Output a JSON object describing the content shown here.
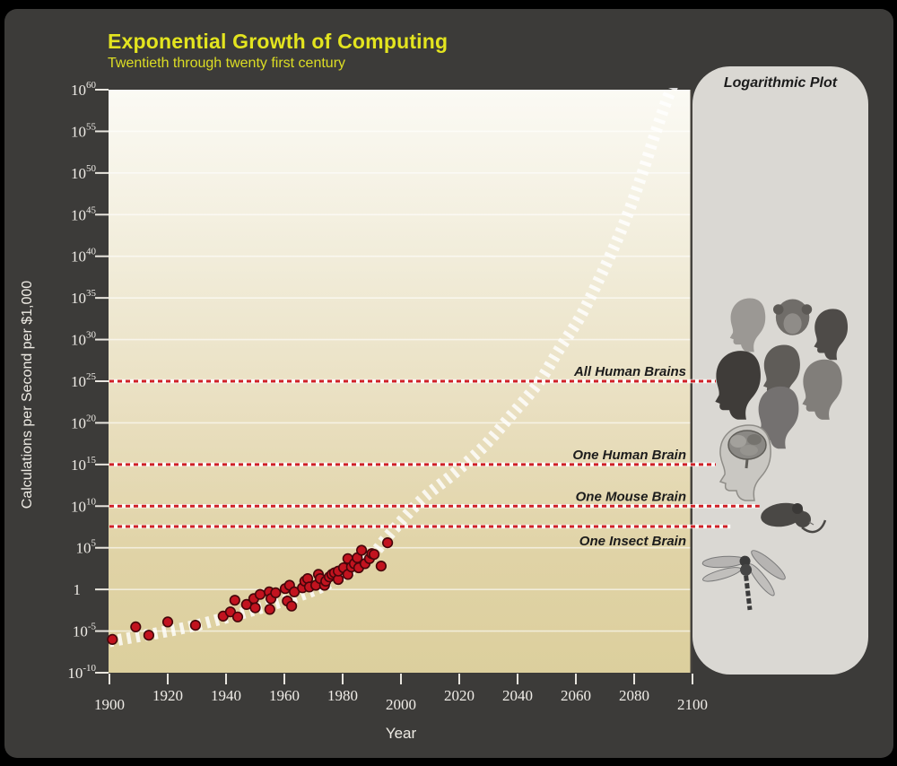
{
  "header": {
    "title": "Exponential Growth of Computing",
    "subtitle": "Twentieth through twenty first century",
    "accent_color": "#e3e41f"
  },
  "panel": {
    "label": "Logarithmic Plot",
    "images": [
      "human-heads-collage",
      "human-brain-cutaway-head",
      "mouse",
      "dragonfly"
    ]
  },
  "chart_data": {
    "type": "scatter",
    "title": "Exponential Growth of Computing",
    "subtitle": "Twentieth through twenty first century",
    "xlabel": "Year",
    "ylabel": "Calculations per Second per $1,000",
    "xlim": [
      1900,
      2100
    ],
    "ylim_log10": [
      -10,
      60
    ],
    "x_ticks": [
      1900,
      1920,
      1940,
      1960,
      1980,
      2000,
      2020,
      2040,
      2060,
      2080,
      2100
    ],
    "y_tick_exponents": [
      60,
      55,
      50,
      45,
      40,
      35,
      30,
      25,
      20,
      15,
      10,
      5,
      0,
      -5,
      -10
    ],
    "grid": true,
    "legend_position": "none",
    "point_color": "#c2131f",
    "point_edge_color": "#45060a",
    "trend_color": "#ffffff",
    "reference_line_color": "#cf2026",
    "points_year_log10": [
      [
        1901,
        -6.0
      ],
      [
        1909,
        -4.5
      ],
      [
        1913.5,
        -5.5
      ],
      [
        1920,
        -3.9
      ],
      [
        1929.5,
        -4.3
      ],
      [
        1939,
        -3.2
      ],
      [
        1941.5,
        -2.7
      ],
      [
        1943,
        -1.3
      ],
      [
        1944,
        -3.3
      ],
      [
        1947,
        -1.8
      ],
      [
        1949.5,
        -1.1
      ],
      [
        1950,
        -2.2
      ],
      [
        1951.7,
        -0.6
      ],
      [
        1954.8,
        -0.3
      ],
      [
        1955,
        -2.4
      ],
      [
        1955.4,
        -1.1
      ],
      [
        1957,
        -0.4
      ],
      [
        1960.3,
        0.1
      ],
      [
        1961,
        -1.4
      ],
      [
        1961.8,
        0.5
      ],
      [
        1962.5,
        -2.0
      ],
      [
        1963.4,
        -0.3
      ],
      [
        1966.2,
        0.2
      ],
      [
        1967,
        1.0
      ],
      [
        1968,
        1.3
      ],
      [
        1968.6,
        0.3
      ],
      [
        1970.8,
        0.5
      ],
      [
        1971.7,
        1.8
      ],
      [
        1972.3,
        1.3
      ],
      [
        1973.8,
        0.5
      ],
      [
        1974.2,
        1.0
      ],
      [
        1975.4,
        1.5
      ],
      [
        1976.3,
        1.8
      ],
      [
        1977.2,
        2.0
      ],
      [
        1978.5,
        1.2
      ],
      [
        1978.5,
        2.2
      ],
      [
        1980.3,
        2.6
      ],
      [
        1981.8,
        1.8
      ],
      [
        1981.8,
        3.7
      ],
      [
        1983,
        2.7
      ],
      [
        1984,
        3.1
      ],
      [
        1985,
        3.8
      ],
      [
        1985.5,
        2.6
      ],
      [
        1986.5,
        4.7
      ],
      [
        1987.7,
        3.1
      ],
      [
        1989.2,
        3.7
      ],
      [
        1990,
        4.3
      ],
      [
        1990.8,
        4.2
      ],
      [
        1993.2,
        2.8
      ],
      [
        1995.4,
        5.6
      ]
    ],
    "trend_year_log10": [
      [
        1900,
        -6.24
      ],
      [
        1924,
        -4.74
      ],
      [
        1939.4,
        -3.44
      ],
      [
        1954.8,
        -1.93
      ],
      [
        1970.2,
        -0.1
      ],
      [
        1980,
        1.73
      ],
      [
        1990.2,
        4.21
      ],
      [
        1995.7,
        6.47
      ],
      [
        2007.1,
        10.77
      ],
      [
        2018.5,
        14.0
      ],
      [
        2028.6,
        17.23
      ],
      [
        2037.8,
        20.9
      ],
      [
        2047.1,
        24.77
      ],
      [
        2054.2,
        28.76
      ],
      [
        2061.5,
        32.74
      ],
      [
        2067.7,
        37.05
      ],
      [
        2073.8,
        41.68
      ],
      [
        2078.8,
        45.99
      ],
      [
        2083.1,
        50.29
      ],
      [
        2087.1,
        54.6
      ],
      [
        2090.8,
        58.37
      ],
      [
        2093.8,
        61.06
      ]
    ],
    "reference_lines": [
      {
        "label": "All Human Brains",
        "log10_value": 25.0,
        "line_end_year": 2108,
        "label_below": false
      },
      {
        "label": "One Human Brain",
        "log10_value": 15.0,
        "line_end_year": 2108,
        "label_below": false
      },
      {
        "label": "One Mouse Brain",
        "log10_value": 10.0,
        "line_end_year": 2123,
        "label_below": false
      },
      {
        "label": "One Insect Brain",
        "log10_value": 7.55,
        "line_end_year": 2113,
        "label_below": true
      }
    ]
  }
}
